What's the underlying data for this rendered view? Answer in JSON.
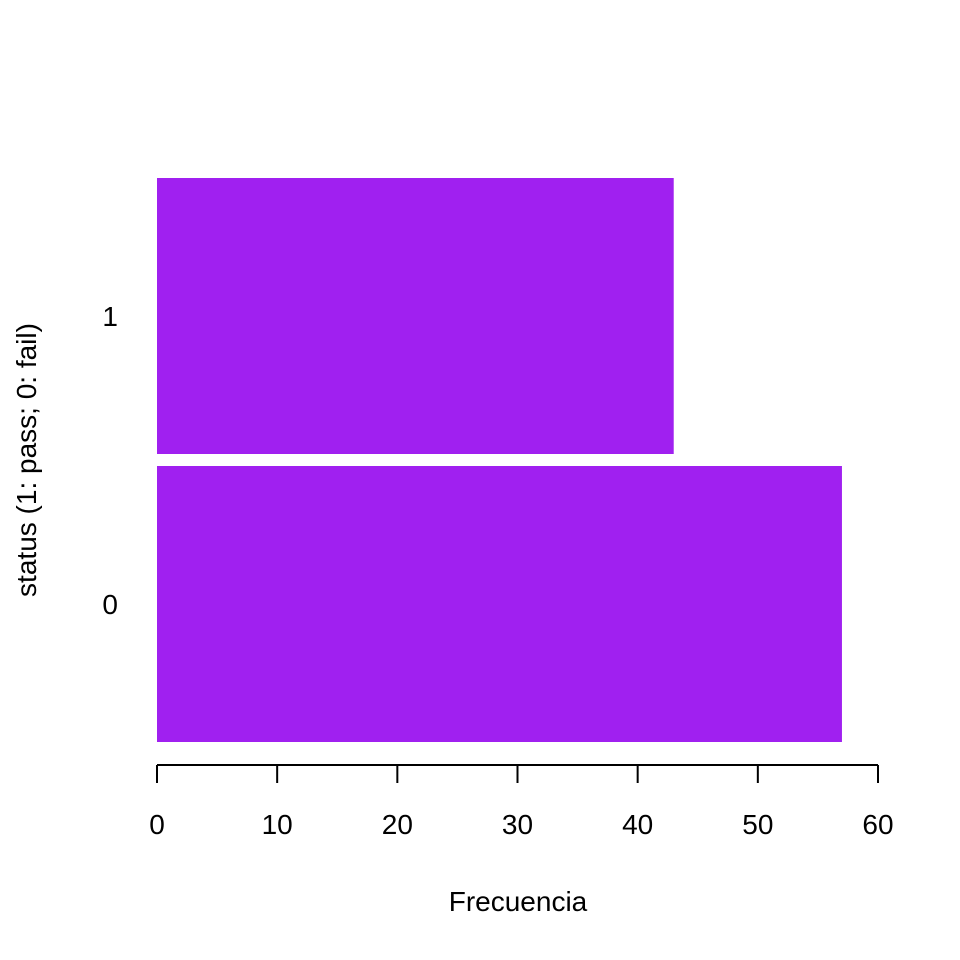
{
  "chart_data": {
    "type": "bar",
    "orientation": "horizontal",
    "categories": [
      "0",
      "1"
    ],
    "values": [
      57,
      43
    ],
    "xlabel": "Frecuencia",
    "ylabel": "status (1: pass; 0: fail)",
    "xlim": [
      0,
      60
    ],
    "xticks": [
      "0",
      "10",
      "20",
      "30",
      "40",
      "50",
      "60"
    ],
    "bar_color": "#a020f0",
    "grid": false,
    "legend": "none"
  }
}
